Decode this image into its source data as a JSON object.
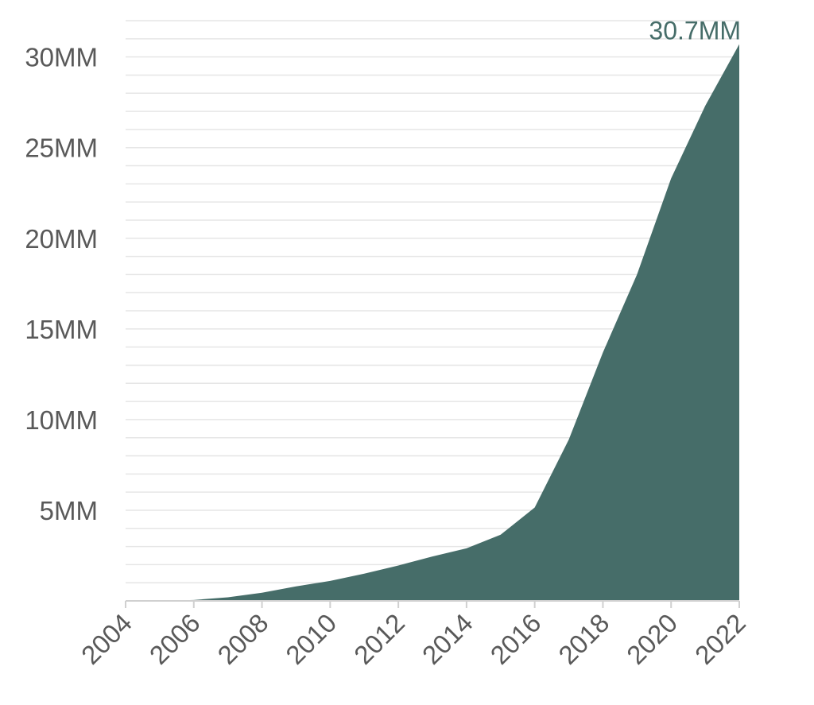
{
  "chart_data": {
    "type": "area",
    "title": "",
    "xlabel": "",
    "ylabel": "",
    "x": [
      2004,
      2005,
      2006,
      2007,
      2008,
      2009,
      2010,
      2011,
      2012,
      2013,
      2014,
      2015,
      2016,
      2017,
      2018,
      2019,
      2020,
      2021,
      2022
    ],
    "series": [
      {
        "values": [
          0,
          0,
          0.05,
          0.2,
          0.45,
          0.8,
          1.1,
          1.5,
          1.95,
          2.45,
          2.9,
          3.65,
          5.15,
          8.9,
          13.7,
          18.0,
          23.3,
          27.3,
          30.7
        ],
        "color": "#466d69"
      }
    ],
    "xlim": [
      2004,
      2022
    ],
    "ylim": [
      0,
      32
    ],
    "x_ticks": [
      "2004",
      "2006",
      "2008",
      "2010",
      "2012",
      "2014",
      "2016",
      "2018",
      "2020",
      "2022"
    ],
    "y_ticks": [
      "5MM",
      "10MM",
      "15MM",
      "20MM",
      "25MM",
      "30MM"
    ],
    "y_tick_values": [
      5,
      10,
      15,
      20,
      25,
      30
    ],
    "minor_grid_step": 1,
    "grid": true,
    "annotations": [
      {
        "text": "30.7MM",
        "x": 2022,
        "y": 30.7,
        "color": "#466d69"
      }
    ]
  }
}
